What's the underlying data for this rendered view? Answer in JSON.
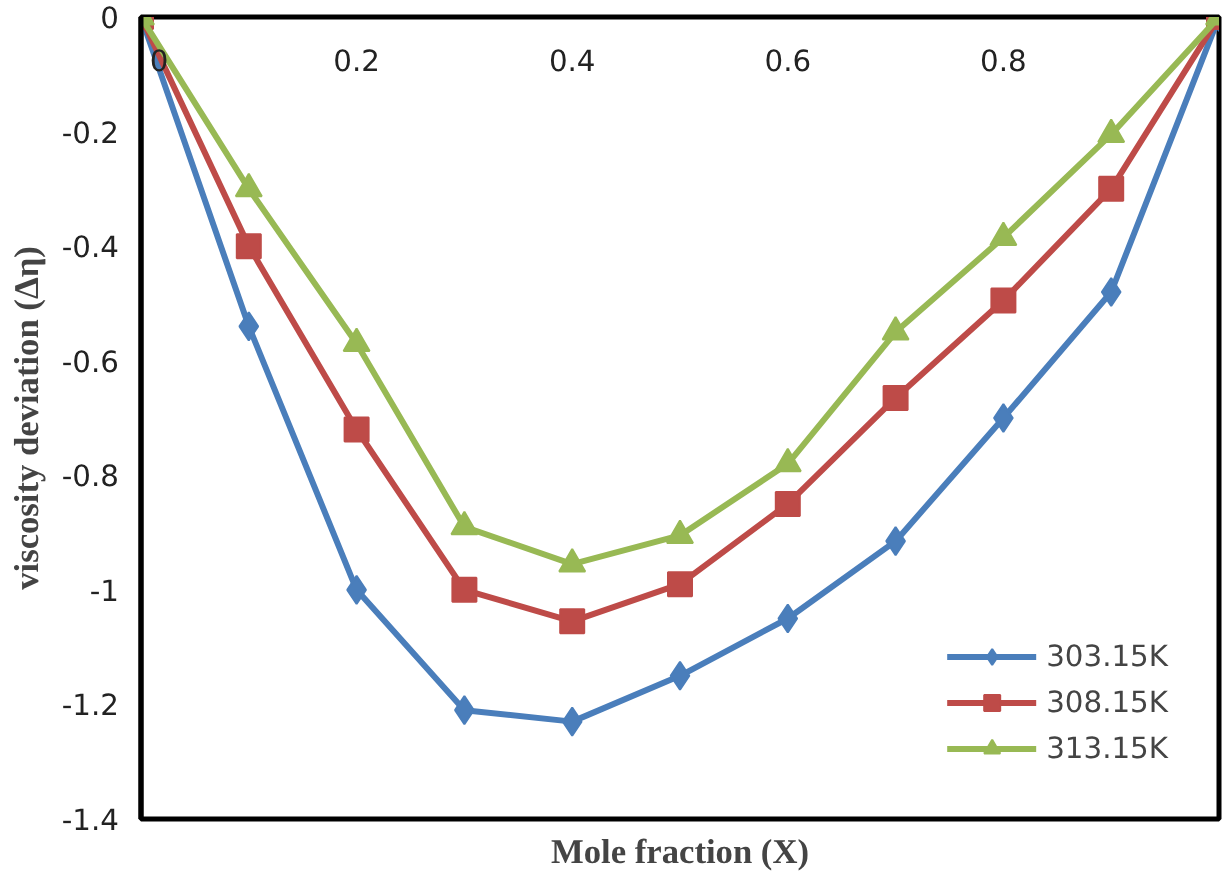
{
  "chart_data": {
    "type": "line",
    "xlabel": "Mole fraction (X)",
    "ylabel": "viscosity deviation (Δη)",
    "x": [
      0,
      0.1,
      0.2,
      0.3,
      0.4,
      0.5,
      0.6,
      0.7,
      0.8,
      0.9,
      1.0
    ],
    "series": [
      {
        "name": "303.15K",
        "color": "#4a7ebb",
        "marker": "diamond",
        "values": [
          0,
          -0.54,
          -1.0,
          -1.21,
          -1.23,
          -1.15,
          -1.05,
          -0.915,
          -0.7,
          -0.48,
          0
        ]
      },
      {
        "name": "308.15K",
        "color": "#be4b48",
        "marker": "square",
        "values": [
          0,
          -0.4,
          -0.72,
          -1.0,
          -1.055,
          -0.99,
          -0.85,
          -0.665,
          -0.495,
          -0.3,
          0
        ]
      },
      {
        "name": "313.15K",
        "color": "#98b954",
        "marker": "triangle",
        "values": [
          0,
          -0.3,
          -0.57,
          -0.89,
          -0.955,
          -0.905,
          -0.78,
          -0.55,
          -0.385,
          -0.205,
          0
        ]
      }
    ],
    "xlim": [
      0,
      1
    ],
    "ylim": [
      -1.4,
      0
    ],
    "xticks": [
      0,
      0.2,
      0.4,
      0.6,
      0.8
    ],
    "yticks": [
      0,
      -0.2,
      -0.4,
      -0.6,
      -0.8,
      -1,
      -1.2,
      -1.4
    ],
    "grid": false,
    "legend": "bottom right"
  }
}
